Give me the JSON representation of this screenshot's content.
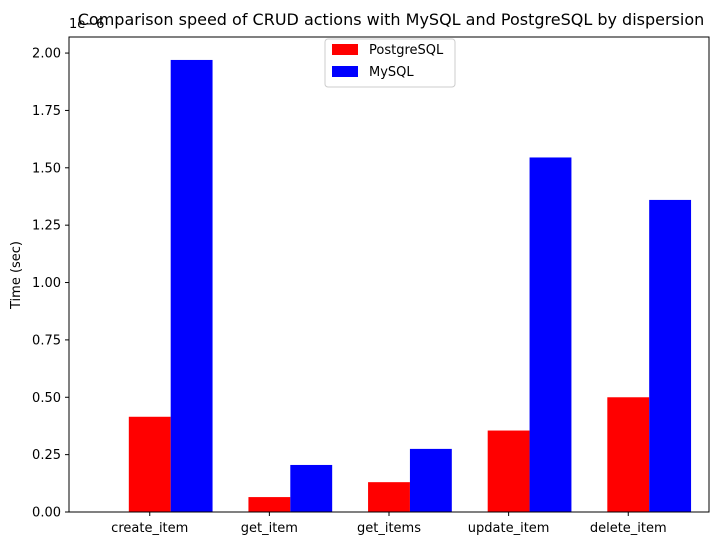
{
  "chart_data": {
    "type": "bar",
    "title": "Comparison speed of CRUD actions with MySQL and PostgreSQL by dispersion",
    "xlabel": "",
    "ylabel": "Time (sec)",
    "y_offset_text": "1e−6",
    "y_scale_multiplier": 1e-06,
    "categories": [
      "create_item",
      "get_item",
      "get_items",
      "update_item",
      "delete_item"
    ],
    "series": [
      {
        "name": "PostgreSQL",
        "color": "#ff0000",
        "values": [
          0.415,
          0.065,
          0.13,
          0.355,
          0.5
        ]
      },
      {
        "name": "MySQL",
        "color": "#0000ff",
        "values": [
          1.97,
          0.205,
          0.275,
          1.545,
          1.36
        ]
      }
    ],
    "ylim": [
      0,
      2.07
    ],
    "yticks": [
      0.0,
      0.25,
      0.5,
      0.75,
      1.0,
      1.25,
      1.5,
      1.75,
      2.0
    ],
    "ytick_labels": [
      "0.00",
      "0.25",
      "0.50",
      "0.75",
      "1.00",
      "1.25",
      "1.50",
      "1.75",
      "2.00"
    ],
    "grid": false,
    "legend_position": "top-center"
  }
}
